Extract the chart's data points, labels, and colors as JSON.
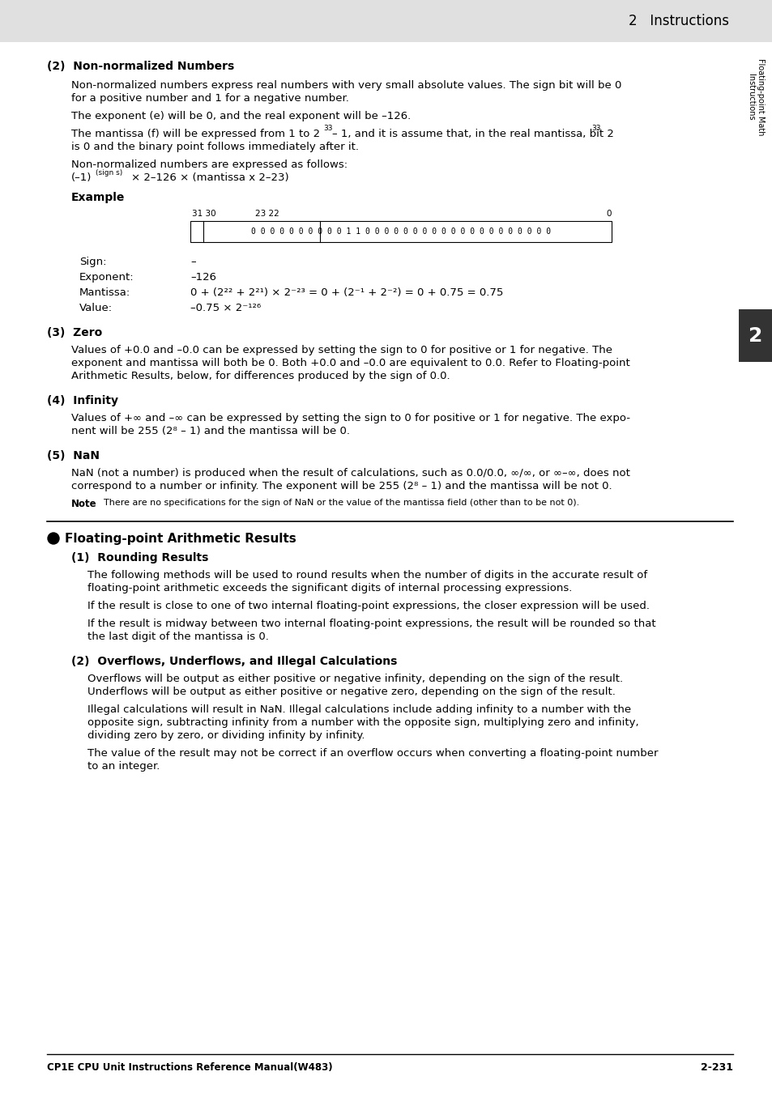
{
  "header_bg": "#e0e0e0",
  "header_text": "2   Instructions",
  "sidebar_bg": "#333333",
  "body_bg": "#ffffff",
  "footer_left": "CP1E CPU Unit Instructions Reference Manual(W483)",
  "footer_right": "2-231"
}
